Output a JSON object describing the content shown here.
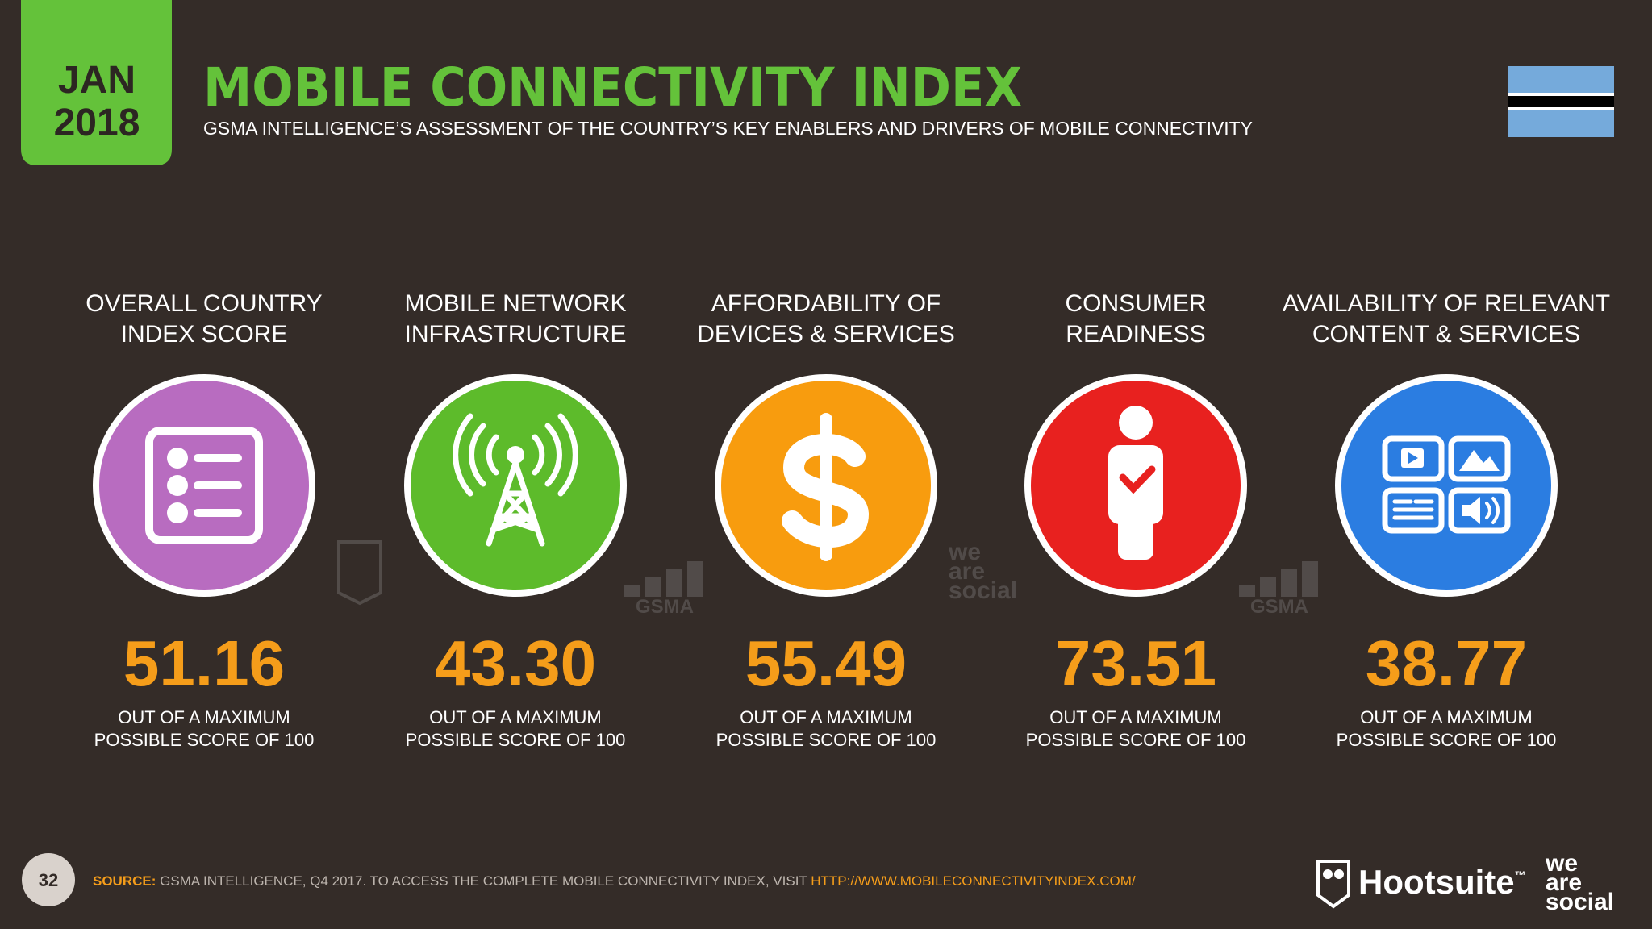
{
  "header": {
    "month": "JAN",
    "year": "2018",
    "title": "MOBILE CONNECTIVITY INDEX",
    "subtitle": "GSMA INTELLIGENCE’S ASSESSMENT OF THE COUNTRY’S KEY ENABLERS AND DRIVERS OF MOBILE CONNECTIVITY"
  },
  "metrics": [
    {
      "label": [
        "OVERALL COUNTRY",
        "INDEX SCORE"
      ],
      "score": "51.16",
      "caption": [
        "OUT OF A MAXIMUM",
        "POSSIBLE SCORE OF 100"
      ]
    },
    {
      "label": [
        "MOBILE NETWORK",
        "INFRASTRUCTURE"
      ],
      "score": "43.30",
      "caption": [
        "OUT OF A MAXIMUM",
        "POSSIBLE SCORE OF 100"
      ]
    },
    {
      "label": [
        "AFFORDABILITY OF",
        "DEVICES & SERVICES"
      ],
      "score": "55.49",
      "caption": [
        "OUT OF A MAXIMUM",
        "POSSIBLE SCORE OF 100"
      ]
    },
    {
      "label": [
        "CONSUMER",
        "READINESS"
      ],
      "score": "73.51",
      "caption": [
        "OUT OF A MAXIMUM",
        "POSSIBLE SCORE OF 100"
      ]
    },
    {
      "label": [
        "AVAILABILITY OF RELEVANT",
        "CONTENT & SERVICES"
      ],
      "score": "38.77",
      "caption": [
        "OUT OF A MAXIMUM",
        "POSSIBLE SCORE OF 100"
      ]
    }
  ],
  "watermarks": {
    "gsma": "GSMA",
    "was": [
      "we",
      "are",
      "social"
    ]
  },
  "footer": {
    "page": "32",
    "source_label": "SOURCE:",
    "source_text": " GSMA INTELLIGENCE, Q4 2017. TO ACCESS THE COMPLETE MOBILE CONNECTIVITY INDEX, VISIT ",
    "source_url": "HTTP://WWW.MOBILECONNECTIVITYINDEX.COM/",
    "brand": "Hootsuite",
    "trademark": "™",
    "brand_2": [
      "we",
      "are",
      "social"
    ]
  }
}
